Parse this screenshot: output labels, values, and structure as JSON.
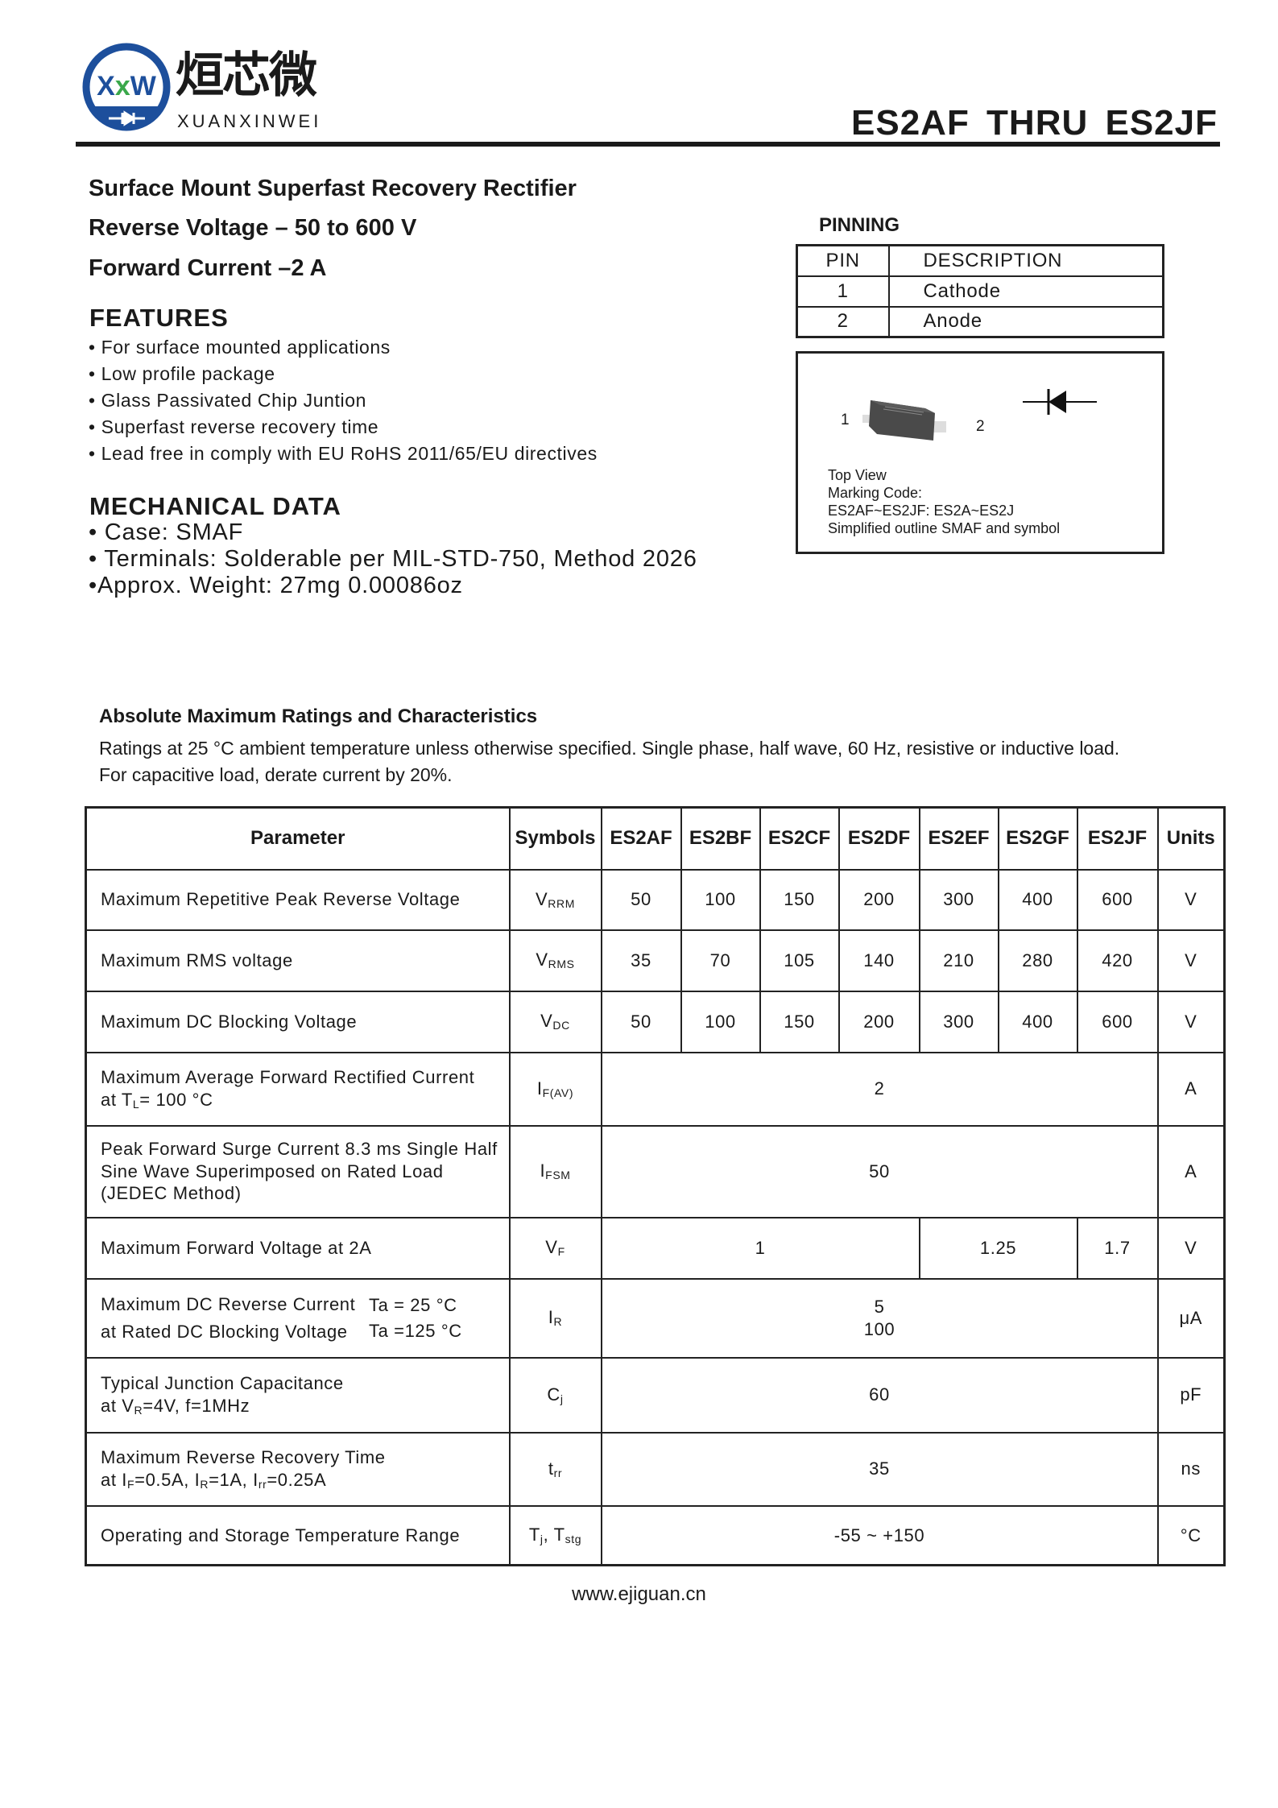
{
  "header": {
    "logo_mark": "XW",
    "brand_cn": "烜芯微",
    "brand_en": "XUANXINWEI",
    "title": "ES2AF THRU ES2JF",
    "brand_color": "#1d4f9c",
    "accent_color": "#3aa84a"
  },
  "summary": {
    "line1": "Surface Mount Superfast Recovery Rectifier",
    "line2": "Reverse Voltage – 50 to 600 V",
    "line3": "Forward Current –2 A"
  },
  "features": {
    "title": "FEATURES",
    "items": [
      "• For surface mounted applications",
      "• Low profile package",
      "• Glass Passivated Chip Juntion",
      "• Superfast reverse recovery time",
      "• Lead free in comply with EU RoHS 2011/65/EU directives"
    ]
  },
  "mechanical": {
    "title": "MECHANICAL DATA",
    "items": [
      "• Case: SMAF",
      "• Terminals: Solderable per MIL-STD-750, Method 2026",
      "•Approx. Weight: 27mg  0.00086oz"
    ]
  },
  "pinning": {
    "title": "PINNING",
    "headers": [
      "PIN",
      "DESCRIPTION"
    ],
    "rows": [
      [
        "1",
        "Cathode"
      ],
      [
        "2",
        "Anode"
      ]
    ]
  },
  "diagram": {
    "pin1": "1",
    "pin2": "2",
    "lines": [
      "Top View",
      "Marking Code:",
      "ES2AF~ES2JF: ES2A~ES2J",
      "Simplified outline SMAF and symbol"
    ]
  },
  "ratings": {
    "title": "Absolute Maximum Ratings and Characteristics",
    "note1": "Ratings at 25 °C ambient temperature unless otherwise specified. Single phase, half wave, 60 Hz, resistive or inductive load.",
    "note2": "For capacitive load, derate current by 20%.",
    "headers": [
      "Parameter",
      "Symbols",
      "ES2AF",
      "ES2BF",
      "ES2CF",
      "ES2DF",
      "ES2EF",
      "ES2GF",
      "ES2JF",
      "Units"
    ],
    "vrrm": {
      "param": "Maximum Repetitive Peak Reverse Voltage",
      "sym": "V",
      "sub": "RRM",
      "values": [
        "50",
        "100",
        "150",
        "200",
        "300",
        "400",
        "600"
      ],
      "unit": "V"
    },
    "vrms": {
      "param": "Maximum RMS voltage",
      "sym": "V",
      "sub": "RMS",
      "values": [
        "35",
        "70",
        "105",
        "140",
        "210",
        "280",
        "420"
      ],
      "unit": "V"
    },
    "vdc": {
      "param": "Maximum DC Blocking Voltage",
      "sym": "V",
      "sub": "DC",
      "values": [
        "50",
        "100",
        "150",
        "200",
        "300",
        "400",
        "600"
      ],
      "unit": "V"
    },
    "ifav": {
      "param1": "Maximum Average Forward Rectified Current",
      "param2a": "at T",
      "param2sub": "L",
      "param2b": "= 100 °C",
      "sym": "I",
      "sub": "F(AV)",
      "value": "2",
      "unit": "A"
    },
    "ifsm": {
      "param1": "Peak Forward Surge Current 8.3 ms Single Half",
      "param2": "Sine Wave Superimposed on Rated Load",
      "param3": "(JEDEC Method)",
      "sym": "I",
      "sub": "FSM",
      "value": "50",
      "unit": "A"
    },
    "vf": {
      "param": "Maximum  Forward Voltage at 2A",
      "sym": "V",
      "sub": "F",
      "v1": "1",
      "v2": "1.25",
      "v3": "1.7",
      "unit": "V"
    },
    "ir": {
      "param1": "Maximum DC Reverse Current",
      "cond1": "Ta = 25 °C",
      "param2": "at Rated DC Blocking Voltage",
      "cond2": "Ta =125 °C",
      "sym": "I",
      "sub": "R",
      "value1": "5",
      "value2": "100",
      "unit": "μA"
    },
    "cj": {
      "param1": "Typical Junction Capacitance",
      "param2a": "at V",
      "param2sub": "R",
      "param2b": "=4V, f=1MHz",
      "sym": "C",
      "sub": "j",
      "value": "60",
      "unit": "pF"
    },
    "trr": {
      "param1": "Maximum Reverse Recovery Time",
      "p2a": "at I",
      "p2s1": "F",
      "p2b": "=0.5A, I",
      "p2s2": "R",
      "p2c": "=1A, I",
      "p2s3": "rr",
      "p2d": "=0.25A",
      "sym": "t",
      "sub": "rr",
      "value": "35",
      "unit": "ns"
    },
    "temp": {
      "param": "Operating and Storage Temperature Range",
      "sym1": "T",
      "sub1": "j",
      "sep": ", T",
      "sub2": "stg",
      "value": "-55 ~ +150",
      "unit": "°C"
    }
  },
  "footer": {
    "url": "www.ejiguan.cn"
  }
}
